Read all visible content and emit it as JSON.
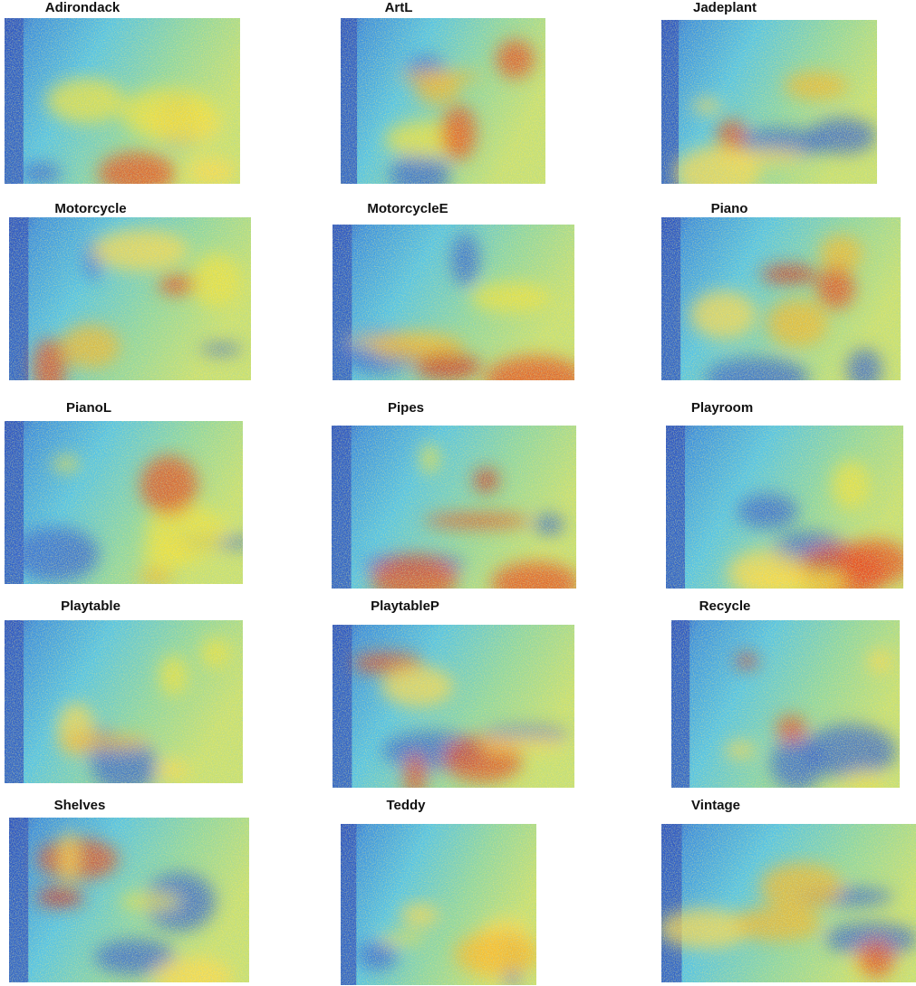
{
  "panels": [
    {
      "label": "Adirondack"
    },
    {
      "label": "ArtL"
    },
    {
      "label": "Jadeplant"
    },
    {
      "label": "Motorcycle"
    },
    {
      "label": "MotorcycleE"
    },
    {
      "label": "Piano"
    },
    {
      "label": "PianoL"
    },
    {
      "label": "Pipes"
    },
    {
      "label": "Playroom"
    },
    {
      "label": "Playtable"
    },
    {
      "label": "PlaytableP"
    },
    {
      "label": "Recycle"
    },
    {
      "label": "Shelves"
    },
    {
      "label": "Teddy"
    },
    {
      "label": "Vintage"
    }
  ]
}
